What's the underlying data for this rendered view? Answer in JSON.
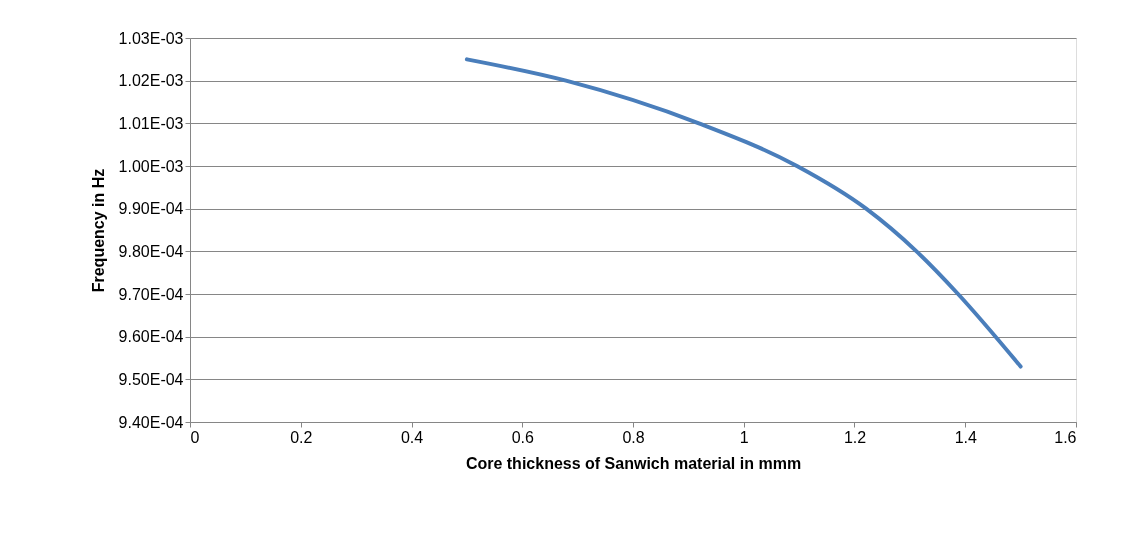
{
  "chart_data": {
    "type": "line",
    "xlabel": "Core thickness of Sanwich material in mmm",
    "ylabel": "Frequency in Hz",
    "x": [
      0.5,
      0.679,
      0.919,
      1.096,
      1.221,
      1.312,
      1.387,
      1.5
    ],
    "series": [
      {
        "color": "#4a7ebb",
        "values": [
          0.001025,
          0.00102,
          0.00101,
          0.001,
          0.00099,
          0.00098,
          0.00097,
          0.000953
        ]
      }
    ],
    "xlim": [
      0,
      1.6
    ],
    "xticks": [
      0,
      0.2,
      0.4,
      0.6,
      0.8,
      1,
      1.2,
      1.4,
      1.6
    ],
    "ylim": [
      0.00094,
      0.00103
    ],
    "yticks": [
      {
        "value": 0.00094,
        "label": "9.40E-04"
      },
      {
        "value": 0.00095,
        "label": "9.50E-04"
      },
      {
        "value": 0.00096,
        "label": "9.60E-04"
      },
      {
        "value": 0.00097,
        "label": "9.70E-04"
      },
      {
        "value": 0.00098,
        "label": "9.80E-04"
      },
      {
        "value": 0.00099,
        "label": "9.90E-04"
      },
      {
        "value": 0.001,
        "label": "1.00E-03"
      },
      {
        "value": 0.00101,
        "label": "1.01E-03"
      },
      {
        "value": 0.00102,
        "label": "1.02E-03"
      },
      {
        "value": 0.00103,
        "label": "1.03E-03"
      }
    ],
    "grid": "y",
    "marker": "none",
    "line_style": "solid",
    "legend": false
  }
}
